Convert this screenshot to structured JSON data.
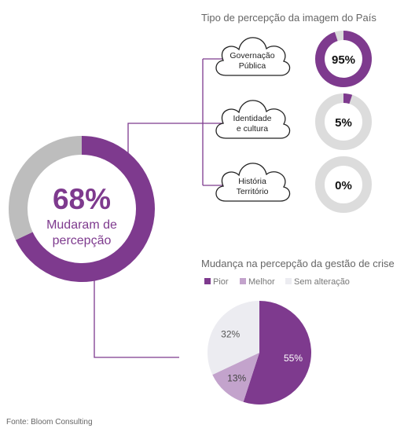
{
  "colors": {
    "purple": "#7e3a8e",
    "light_purple": "#c3a3cc",
    "gray": "#bdbdbd",
    "light_gray": "#dcdcdc",
    "sem_alteracao": "#ececf1",
    "connector": "#7e3a8e"
  },
  "main": {
    "value_label": "68%",
    "caption_line1": "Mudaram de",
    "caption_line2": "percepção"
  },
  "source": "Fonte: Bloom Consulting",
  "chart_data": [
    {
      "type": "pie",
      "title": "",
      "categories": [
        "Mudaram de percepção",
        ""
      ],
      "values": [
        68,
        32
      ],
      "colors": [
        "#7e3a8e",
        "#bdbdbd"
      ],
      "donut": true
    },
    {
      "type": "pie",
      "title": "Tipo de percepção da imagem do País",
      "items": [
        {
          "category_lines": [
            "Governação",
            "Pública"
          ],
          "value": 95,
          "value_label": "95%"
        },
        {
          "category_lines": [
            "Identidade",
            "e cultura"
          ],
          "value": 5,
          "value_label": "5%"
        },
        {
          "category_lines": [
            "História",
            "Território"
          ],
          "value": 0,
          "value_label": "0%"
        }
      ],
      "donut": true
    },
    {
      "type": "pie",
      "title": "Mudança na percepção da gestão de crise",
      "legend": [
        "Pior",
        "Melhor",
        "Sem alteração"
      ],
      "legend_position": "top",
      "categories": [
        "Pior",
        "Melhor",
        "Sem alteração"
      ],
      "values": [
        55,
        13,
        32
      ],
      "value_labels": [
        "55%",
        "13%",
        "32%"
      ],
      "colors": [
        "#7e3a8e",
        "#c3a3cc",
        "#ececf1"
      ]
    }
  ]
}
